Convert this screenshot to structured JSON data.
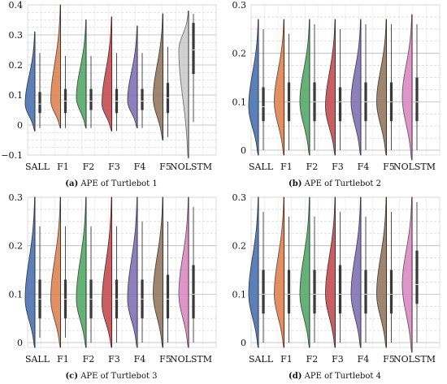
{
  "chart_data": [
    {
      "type": "violin",
      "caption_prefix": "(a)",
      "caption_text": "APE of Turtlebot 1",
      "ylim": [
        -0.1,
        0.4
      ],
      "yticks": [
        -0.1,
        0,
        0.1,
        0.2,
        0.3,
        0.4
      ],
      "ytick_labels": [
        "−0.1",
        "0",
        "0.1",
        "0.2",
        "0.3",
        "0.4"
      ],
      "grid": true,
      "categories": [
        "SALL",
        "F1",
        "F2",
        "F3",
        "F4",
        "F5",
        "NOLSTM"
      ],
      "series": [
        {
          "color": "#4c72b0",
          "min": -0.02,
          "max": 0.31,
          "q1": 0.04,
          "q3": 0.11,
          "median": 0.07,
          "whisker_low": -0.01,
          "whisker_high": 0.24,
          "mode": 0.07
        },
        {
          "color": "#dd8452",
          "min": -0.01,
          "max": 0.4,
          "q1": 0.04,
          "q3": 0.12,
          "median": 0.08,
          "whisker_low": -0.01,
          "whisker_high": 0.23,
          "mode": 0.08
        },
        {
          "color": "#55a868",
          "min": -0.01,
          "max": 0.35,
          "q1": 0.05,
          "q3": 0.12,
          "median": 0.08,
          "whisker_low": -0.01,
          "whisker_high": 0.23,
          "mode": 0.09
        },
        {
          "color": "#c44e52",
          "min": -0.02,
          "max": 0.36,
          "q1": 0.04,
          "q3": 0.12,
          "median": 0.08,
          "whisker_low": -0.02,
          "whisker_high": 0.24,
          "mode": 0.07
        },
        {
          "color": "#8172b3",
          "min": -0.01,
          "max": 0.33,
          "q1": 0.05,
          "q3": 0.12,
          "median": 0.08,
          "whisker_low": -0.01,
          "whisker_high": 0.24,
          "mode": 0.08
        },
        {
          "color": "#937860",
          "min": -0.05,
          "max": 0.37,
          "q1": 0.04,
          "q3": 0.14,
          "median": 0.09,
          "whisker_low": -0.04,
          "whisker_high": 0.26,
          "mode": 0.09
        },
        {
          "color": "#cccccc",
          "min": -0.11,
          "max": 0.38,
          "q1": 0.17,
          "q3": 0.34,
          "median": 0.25,
          "whisker_low": 0.01,
          "whisker_high": 0.37,
          "mode": 0.25
        }
      ]
    },
    {
      "type": "violin",
      "caption_prefix": "(b)",
      "caption_text": "APE of Turtlebot 2",
      "ylim": [
        -0.01,
        0.3
      ],
      "yticks": [
        0,
        0.1,
        0.2,
        0.3
      ],
      "ytick_labels": [
        "0",
        "0.1",
        "0.2",
        "0.3"
      ],
      "grid": true,
      "categories": [
        "SALL",
        "F1",
        "F2",
        "F3",
        "F4",
        "F5",
        "NOLSTM"
      ],
      "series": [
        {
          "color": "#4c72b0",
          "min": -0.01,
          "max": 0.27,
          "q1": 0.06,
          "q3": 0.13,
          "median": 0.09,
          "whisker_low": 0.0,
          "whisker_high": 0.25,
          "mode": 0.09
        },
        {
          "color": "#dd8452",
          "min": -0.01,
          "max": 0.27,
          "q1": 0.06,
          "q3": 0.14,
          "median": 0.1,
          "whisker_low": 0.0,
          "whisker_high": 0.24,
          "mode": 0.1
        },
        {
          "color": "#55a868",
          "min": -0.01,
          "max": 0.27,
          "q1": 0.06,
          "q3": 0.14,
          "median": 0.1,
          "whisker_low": 0.0,
          "whisker_high": 0.26,
          "mode": 0.1
        },
        {
          "color": "#c44e52",
          "min": -0.01,
          "max": 0.27,
          "q1": 0.06,
          "q3": 0.13,
          "median": 0.1,
          "whisker_low": 0.0,
          "whisker_high": 0.25,
          "mode": 0.09
        },
        {
          "color": "#8172b3",
          "min": -0.01,
          "max": 0.27,
          "q1": 0.06,
          "q3": 0.14,
          "median": 0.1,
          "whisker_low": 0.0,
          "whisker_high": 0.26,
          "mode": 0.1
        },
        {
          "color": "#937860",
          "min": -0.01,
          "max": 0.27,
          "q1": 0.06,
          "q3": 0.14,
          "median": 0.1,
          "whisker_low": 0.0,
          "whisker_high": 0.26,
          "mode": 0.1
        },
        {
          "color": "#da8bc3",
          "min": -0.02,
          "max": 0.28,
          "q1": 0.06,
          "q3": 0.15,
          "median": 0.1,
          "whisker_low": 0.0,
          "whisker_high": 0.26,
          "mode": 0.11
        }
      ]
    },
    {
      "type": "violin",
      "caption_prefix": "(c)",
      "caption_text": "APE of Turtlebot 3",
      "ylim": [
        -0.01,
        0.3
      ],
      "yticks": [
        0,
        0.1,
        0.2,
        0.3
      ],
      "ytick_labels": [
        "0",
        "0.1",
        "0.2",
        "0.3"
      ],
      "grid": true,
      "categories": [
        "SALL",
        "F1",
        "F2",
        "F3",
        "F4",
        "F5",
        "NOLSTM"
      ],
      "series": [
        {
          "color": "#4c72b0",
          "min": -0.01,
          "max": 0.3,
          "q1": 0.05,
          "q3": 0.13,
          "median": 0.09,
          "whisker_low": 0.01,
          "whisker_high": 0.24,
          "mode": 0.09
        },
        {
          "color": "#dd8452",
          "min": -0.01,
          "max": 0.3,
          "q1": 0.05,
          "q3": 0.13,
          "median": 0.09,
          "whisker_low": 0.01,
          "whisker_high": 0.24,
          "mode": 0.09
        },
        {
          "color": "#55a868",
          "min": -0.01,
          "max": 0.3,
          "q1": 0.05,
          "q3": 0.13,
          "median": 0.09,
          "whisker_low": 0.0,
          "whisker_high": 0.24,
          "mode": 0.09
        },
        {
          "color": "#c44e52",
          "min": -0.01,
          "max": 0.3,
          "q1": 0.05,
          "q3": 0.13,
          "median": 0.09,
          "whisker_low": 0.0,
          "whisker_high": 0.24,
          "mode": 0.08
        },
        {
          "color": "#8172b3",
          "min": -0.01,
          "max": 0.3,
          "q1": 0.05,
          "q3": 0.13,
          "median": 0.09,
          "whisker_low": 0.0,
          "whisker_high": 0.25,
          "mode": 0.09
        },
        {
          "color": "#937860",
          "min": -0.01,
          "max": 0.3,
          "q1": 0.05,
          "q3": 0.14,
          "median": 0.09,
          "whisker_low": 0.0,
          "whisker_high": 0.25,
          "mode": 0.1
        },
        {
          "color": "#da8bc3",
          "min": -0.01,
          "max": 0.3,
          "q1": 0.05,
          "q3": 0.16,
          "median": 0.1,
          "whisker_low": 0.0,
          "whisker_high": 0.28,
          "mode": 0.1
        }
      ]
    },
    {
      "type": "violin",
      "caption_prefix": "(d)",
      "caption_text": "APE of Turtlebot 4",
      "ylim": [
        -0.01,
        0.3
      ],
      "yticks": [
        0,
        0.1,
        0.2,
        0.3
      ],
      "ytick_labels": [
        "0",
        "0.1",
        "0.2",
        "0.3"
      ],
      "grid": true,
      "categories": [
        "SALL",
        "F1",
        "F2",
        "F3",
        "F4",
        "F5",
        "NOLSTM"
      ],
      "series": [
        {
          "color": "#4c72b0",
          "min": -0.01,
          "max": 0.3,
          "q1": 0.06,
          "q3": 0.15,
          "median": 0.1,
          "whisker_low": 0.0,
          "whisker_high": 0.27,
          "mode": 0.1
        },
        {
          "color": "#dd8452",
          "min": -0.01,
          "max": 0.3,
          "q1": 0.06,
          "q3": 0.15,
          "median": 0.1,
          "whisker_low": 0.0,
          "whisker_high": 0.26,
          "mode": 0.1
        },
        {
          "color": "#55a868",
          "min": -0.01,
          "max": 0.3,
          "q1": 0.06,
          "q3": 0.15,
          "median": 0.1,
          "whisker_low": 0.0,
          "whisker_high": 0.26,
          "mode": 0.1
        },
        {
          "color": "#c44e52",
          "min": -0.01,
          "max": 0.3,
          "q1": 0.06,
          "q3": 0.16,
          "median": 0.1,
          "whisker_low": 0.0,
          "whisker_high": 0.27,
          "mode": 0.1
        },
        {
          "color": "#8172b3",
          "min": -0.01,
          "max": 0.3,
          "q1": 0.06,
          "q3": 0.15,
          "median": 0.1,
          "whisker_low": 0.0,
          "whisker_high": 0.26,
          "mode": 0.1
        },
        {
          "color": "#937860",
          "min": -0.01,
          "max": 0.3,
          "q1": 0.06,
          "q3": 0.15,
          "median": 0.1,
          "whisker_low": 0.0,
          "whisker_high": 0.27,
          "mode": 0.1
        },
        {
          "color": "#da8bc3",
          "min": -0.02,
          "max": 0.3,
          "q1": 0.08,
          "q3": 0.19,
          "median": 0.12,
          "whisker_low": 0.0,
          "whisker_high": 0.29,
          "mode": 0.12
        }
      ]
    }
  ]
}
